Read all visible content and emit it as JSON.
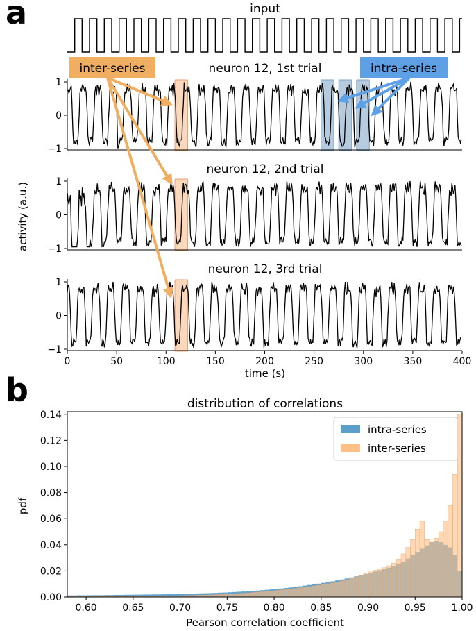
{
  "panel_a": {
    "letter": "a",
    "input_label": "input",
    "ylabel": "activity (a.u.)",
    "xlabel": "time (s)",
    "inter_label": "inter-series",
    "intra_label": "intra-series",
    "colors": {
      "inter": "#f0ae62",
      "intra": "#5da0e6",
      "inter_box_fill": "#f9c9a5",
      "intra_box_fill": "#a9c2d8",
      "trace": "#000000"
    },
    "x_ticks": [
      "0",
      "50",
      "100",
      "150",
      "200",
      "250",
      "300",
      "350",
      "400"
    ],
    "y_ticks": [
      "−1",
      "0",
      "1"
    ]
  },
  "panel_b": {
    "letter": "b"
  },
  "chart_data": [
    {
      "type": "line",
      "title": "input",
      "description_values": {
        "x_range": [
          0,
          400
        ],
        "period_s": 15,
        "duty": 0.5,
        "levels": [
          0,
          1
        ]
      }
    },
    {
      "type": "line",
      "title": "neuron 12, 1st trial",
      "xlim": [
        0,
        400
      ],
      "ylim": [
        -1,
        1
      ],
      "y_ticks": [
        -1,
        0,
        1
      ],
      "oscillation_period_s": 15,
      "highlight_windows": [
        {
          "kind": "inter-series",
          "x": [
            109,
            122
          ]
        },
        {
          "kind": "intra-series",
          "x": [
            257,
            270
          ]
        },
        {
          "kind": "intra-series",
          "x": [
            275,
            288
          ]
        },
        {
          "kind": "intra-series",
          "x": [
            293,
            306
          ]
        }
      ]
    },
    {
      "type": "line",
      "title": "neuron 12, 2nd trial",
      "xlim": [
        0,
        400
      ],
      "ylim": [
        -1,
        1
      ],
      "y_ticks": [
        -1,
        0,
        1
      ],
      "oscillation_period_s": 15,
      "highlight_windows": [
        {
          "kind": "inter-series",
          "x": [
            109,
            122
          ]
        }
      ]
    },
    {
      "type": "line",
      "title": "neuron 12, 3rd trial",
      "xlim": [
        0,
        400
      ],
      "ylim": [
        -1,
        1
      ],
      "y_ticks": [
        -1,
        0,
        1
      ],
      "x_ticks": [
        0,
        50,
        100,
        150,
        200,
        250,
        300,
        350,
        400
      ],
      "xlabel": "time (s)",
      "oscillation_period_s": 15,
      "highlight_windows": [
        {
          "kind": "inter-series",
          "x": [
            109,
            122
          ]
        }
      ]
    },
    {
      "type": "bar",
      "title": "distribution of correlations",
      "xlabel": "Pearson correlation coefficient",
      "ylabel": "pdf",
      "xlim": [
        0.58,
        1.0
      ],
      "ylim": [
        0,
        0.142
      ],
      "x_ticks": [
        "0.60",
        "0.65",
        "0.70",
        "0.75",
        "0.80",
        "0.85",
        "0.90",
        "0.95",
        "1.00"
      ],
      "y_ticks": [
        "0.00",
        "0.02",
        "0.04",
        "0.06",
        "0.08",
        "0.10",
        "0.12",
        "0.14"
      ],
      "legend": "top-right",
      "bin_width": 0.005,
      "bin_start": 0.58,
      "series": [
        {
          "name": "intra-series",
          "color": "#5a9ec9",
          "values": [
            0.0012,
            0.0012,
            0.0013,
            0.0013,
            0.0013,
            0.0014,
            0.0014,
            0.0014,
            0.0015,
            0.0015,
            0.0016,
            0.0016,
            0.0017,
            0.0017,
            0.0018,
            0.0018,
            0.0019,
            0.0019,
            0.002,
            0.002,
            0.0021,
            0.0022,
            0.0022,
            0.0023,
            0.0024,
            0.0025,
            0.0026,
            0.0027,
            0.0028,
            0.0029,
            0.003,
            0.0031,
            0.0033,
            0.0034,
            0.0036,
            0.0038,
            0.004,
            0.0042,
            0.0044,
            0.0046,
            0.0049,
            0.0052,
            0.0055,
            0.0058,
            0.0061,
            0.0065,
            0.0069,
            0.0073,
            0.0077,
            0.0082,
            0.0087,
            0.0092,
            0.0097,
            0.0102,
            0.0108,
            0.0114,
            0.012,
            0.0127,
            0.0134,
            0.0142,
            0.015,
            0.0158,
            0.0166,
            0.0175,
            0.0185,
            0.0195,
            0.0205,
            0.0215,
            0.0225,
            0.0235,
            0.025,
            0.027,
            0.0295,
            0.032,
            0.0345,
            0.037,
            0.0395,
            0.042,
            0.043,
            0.042,
            0.04,
            0.038,
            0.032,
            0.02
          ]
        },
        {
          "name": "inter-series",
          "color": "#ffbf86",
          "values": [
            0.0003,
            0.0003,
            0.0003,
            0.0003,
            0.0003,
            0.0003,
            0.0004,
            0.0004,
            0.0004,
            0.0004,
            0.0004,
            0.0005,
            0.0005,
            0.0005,
            0.0005,
            0.0006,
            0.0006,
            0.0006,
            0.0007,
            0.0007,
            0.0008,
            0.0008,
            0.0009,
            0.0009,
            0.001,
            0.0011,
            0.0012,
            0.0013,
            0.0014,
            0.0015,
            0.0016,
            0.0018,
            0.0019,
            0.0021,
            0.0023,
            0.0025,
            0.0027,
            0.0029,
            0.0031,
            0.0034,
            0.0037,
            0.004,
            0.0043,
            0.0046,
            0.005,
            0.0054,
            0.0058,
            0.0062,
            0.0066,
            0.007,
            0.0075,
            0.008,
            0.0085,
            0.009,
            0.0096,
            0.0102,
            0.0108,
            0.0115,
            0.0123,
            0.0132,
            0.0142,
            0.0153,
            0.0165,
            0.0178,
            0.0192,
            0.0205,
            0.0215,
            0.0225,
            0.024,
            0.026,
            0.029,
            0.033,
            0.038,
            0.044,
            0.052,
            0.058,
            0.044,
            0.042,
            0.045,
            0.05,
            0.058,
            0.07,
            0.094,
            0.14
          ]
        }
      ]
    }
  ]
}
